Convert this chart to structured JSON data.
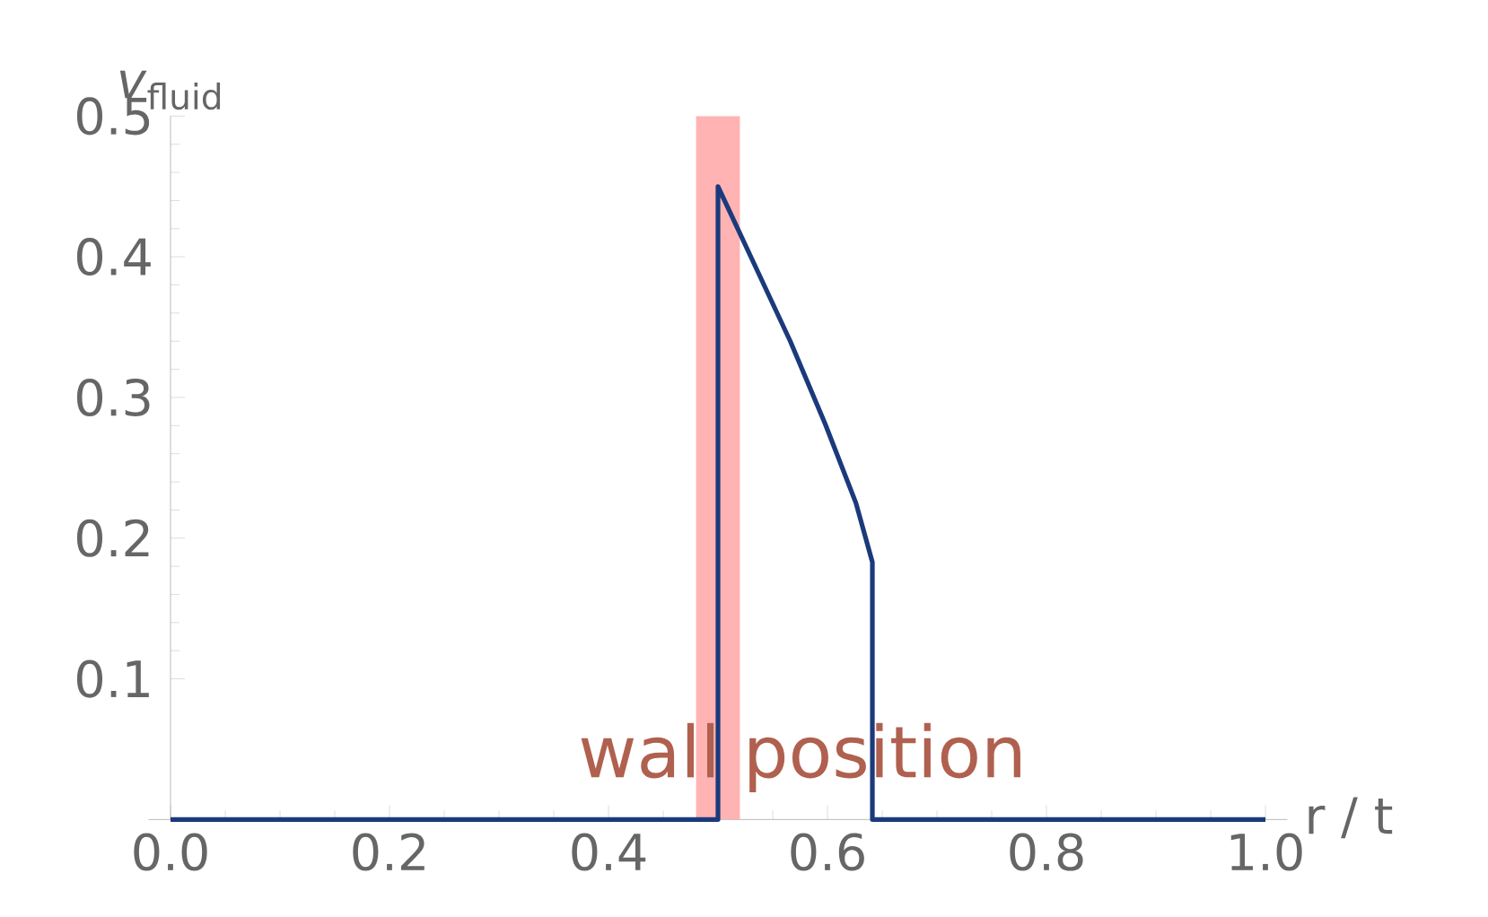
{
  "chart_data": {
    "type": "line",
    "xlabel": "r / t",
    "ylabel": "*v*$_{fluid}$",
    "x": [
      0,
      0.5,
      0.5,
      0.533,
      0.566,
      0.598,
      0.626,
      0.641,
      0.641,
      1.0
    ],
    "values": [
      0,
      0,
      0.45,
      0.395,
      0.34,
      0.281,
      0.225,
      0.183,
      0,
      0
    ],
    "color": "#1b3a7c",
    "xlim": [
      -0.02,
      1.02
    ],
    "ylim": [
      0,
      0.5
    ],
    "xticks": [
      {
        "value": 0,
        "label": "0.0"
      },
      0.2,
      0.4,
      0.6,
      0.8,
      {
        "value": 1,
        "label": "1.0"
      }
    ],
    "yticks": [
      0.1,
      0.2,
      0.3,
      0.4,
      0.5
    ],
    "bands": [
      {
        "axis": "x",
        "from": 0.48,
        "to": 0.52,
        "color": "#ffb3b3",
        "label": "wall position"
      }
    ],
    "grid": false,
    "marker": "none",
    "line_style": "solid"
  }
}
